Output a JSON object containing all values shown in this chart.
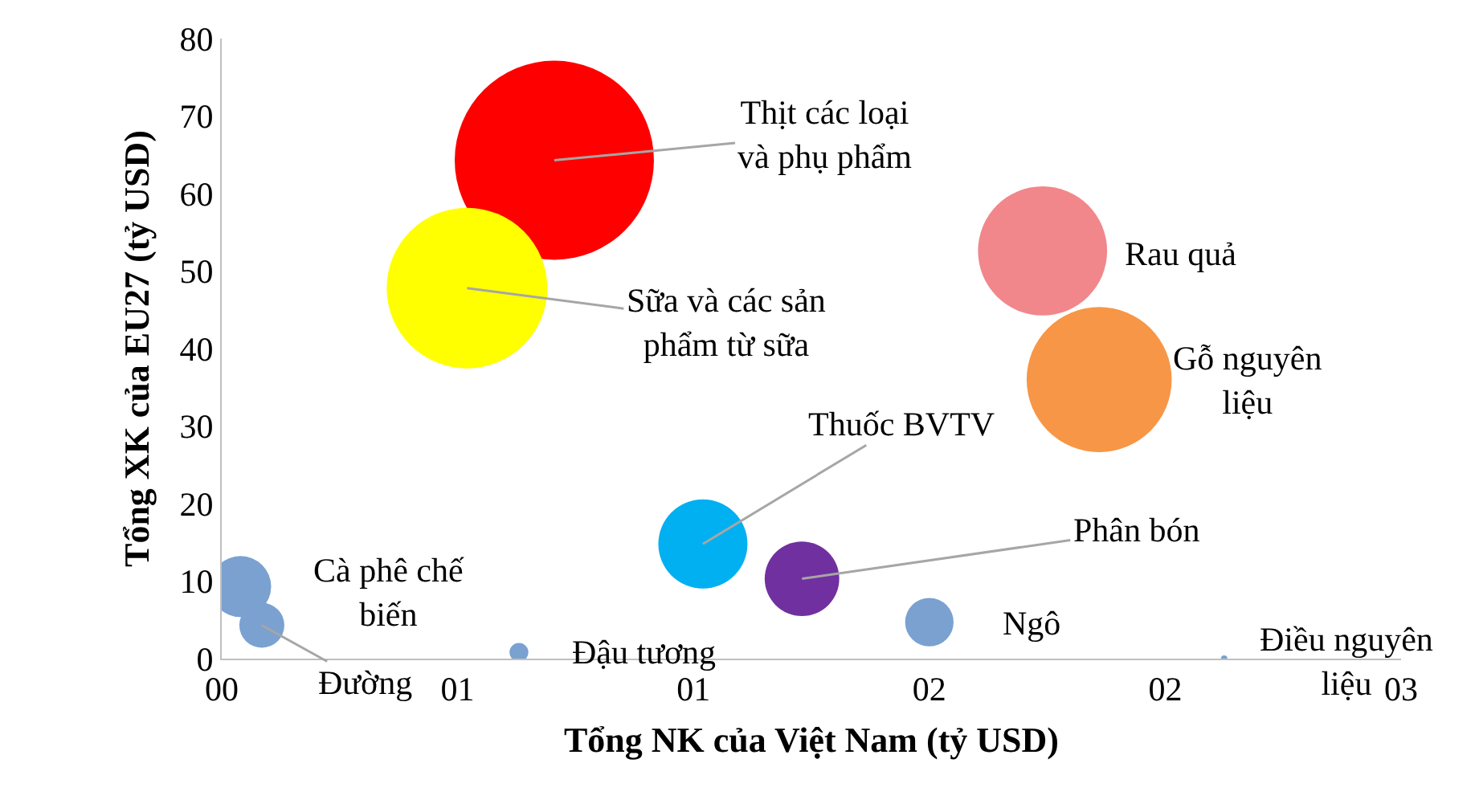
{
  "chart_data": {
    "type": "bubble",
    "xlabel": "Tổng NK của Việt Nam (tỷ USD)",
    "ylabel": "Tổng XK của EU27 (tỷ USD)",
    "x": [
      0.705,
      0.52,
      1.74,
      1.86,
      1.02,
      1.23,
      1.5,
      0.04,
      0.085,
      0.63,
      2.125
    ],
    "values": [
      64.3,
      47.8,
      52.6,
      36,
      14.8,
      10.3,
      4.7,
      9.3,
      4.3,
      0.8,
      0
    ],
    "sizes": [
      1,
      0.65,
      0.42,
      0.53,
      0.2,
      0.14,
      0.059,
      0.094,
      0.051,
      0.009,
      0.001
    ],
    "colors": [
      "#ff0000",
      "#ffff00",
      "#f1878b",
      "#f79646",
      "#00b0f0",
      "#7030a0",
      "#7aa1d0",
      "#7aa1d0",
      "#7aa1d0",
      "#7aa1d0",
      "#7aa1d0"
    ],
    "xlim": [
      0,
      2.5
    ],
    "ylim": [
      0,
      80
    ],
    "xticks": [
      {
        "value": 0,
        "label": "00"
      },
      {
        "value": 0.5,
        "label": "01"
      },
      {
        "value": 1,
        "label": "01"
      },
      {
        "value": 1.5,
        "label": "02"
      },
      {
        "value": 2,
        "label": "02"
      },
      {
        "value": 2.5,
        "label": "03"
      }
    ],
    "yticks": [
      0,
      10,
      20,
      30,
      40,
      50,
      60,
      70,
      80
    ],
    "grid": false,
    "legend": false,
    "annotations": [
      {
        "text": "Thịt các loại\nvà phụ phẩm",
        "x": 0.705,
        "y": 64.3
      },
      {
        "text": "Sữa và các sản\nphẩm từ sữa",
        "x": 0.52,
        "y": 47.8
      },
      {
        "text": "Rau quả",
        "x": 1.74,
        "y": 52.6
      },
      {
        "text": "Gỗ nguyên\nliệu",
        "x": 1.86,
        "y": 36
      },
      {
        "text": "Thuốc BVTV",
        "x": 1.02,
        "y": 14.8
      },
      {
        "text": "Phân bón",
        "x": 1.23,
        "y": 10.3
      },
      {
        "text": "Ngô",
        "x": 1.5,
        "y": 4.7
      },
      {
        "text": "Cà phê chế\nbiến",
        "x": 0.04,
        "y": 9.3
      },
      {
        "text": "Đường",
        "x": 0.085,
        "y": 4.3
      },
      {
        "text": "Đậu tương",
        "x": 0.63,
        "y": 0.8
      },
      {
        "text": "Điều nguyên\nliệu",
        "x": 2.125,
        "y": 0
      }
    ]
  }
}
